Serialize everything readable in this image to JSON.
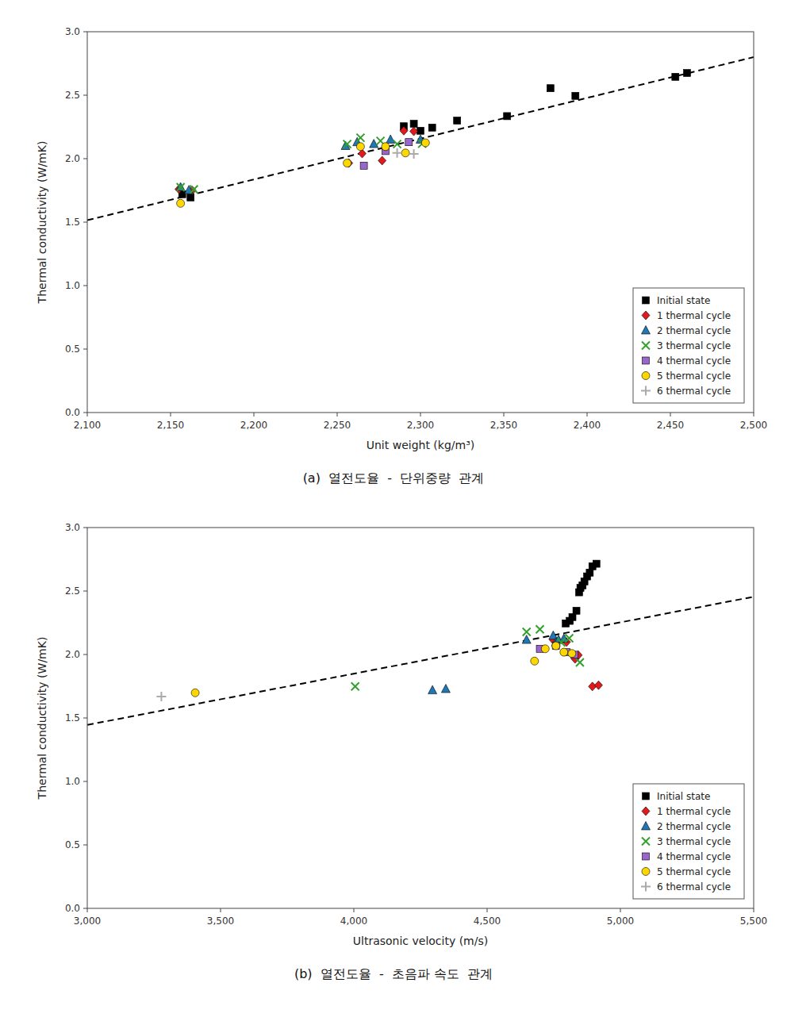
{
  "chart_data": [
    {
      "type": "scatter",
      "title": "(a)  열전도율  -  단위중량  관계",
      "xlabel": "Unit weight (kg/m³)",
      "ylabel": "Thermal conductivity (W/mK)",
      "xlim": [
        2100,
        2500
      ],
      "ylim": [
        0.0,
        3.0
      ],
      "xticks": [
        {
          "value": 2100,
          "label": "2,100"
        },
        {
          "value": 2150,
          "label": "2,150"
        },
        {
          "value": 2200,
          "label": "2,200"
        },
        {
          "value": 2250,
          "label": "2,250"
        },
        {
          "value": 2300,
          "label": "2,300"
        },
        {
          "value": 2350,
          "label": "2,350"
        },
        {
          "value": 2400,
          "label": "2,400"
        },
        {
          "value": 2450,
          "label": "2,450"
        },
        {
          "value": 2500,
          "label": "2,500"
        }
      ],
      "yticks": [
        {
          "value": 0.0,
          "label": "0.0"
        },
        0.5,
        {
          "value": 1.0,
          "label": "1.0"
        },
        1.5,
        {
          "value": 2.0,
          "label": "2.0"
        },
        2.5,
        {
          "value": 3.0,
          "label": "3.0"
        }
      ],
      "grid": false,
      "legend": "lower right",
      "trendline": {
        "x": [
          2100,
          2500
        ],
        "values": [
          1.515,
          2.8
        ],
        "color": "#000000",
        "line_style": "dashed"
      },
      "series": [
        {
          "name": "Initial state",
          "color": "#000000",
          "marker": "square",
          "x": [
            2157,
            2162,
            2290,
            2296,
            2300,
            2307,
            2322,
            2352,
            2378,
            2393,
            2453,
            2460
          ],
          "values": [
            1.72,
            1.695,
            2.255,
            2.275,
            2.22,
            2.245,
            2.3,
            2.335,
            2.555,
            2.495,
            2.645,
            2.675
          ]
        },
        {
          "name": "1 thermal cycle",
          "color": "#e31a1c",
          "marker": "diamond",
          "x": [
            2155,
            2163,
            2257,
            2265,
            2277,
            2290,
            2296
          ],
          "values": [
            1.76,
            1.75,
            1.965,
            2.04,
            1.985,
            2.22,
            2.215
          ]
        },
        {
          "name": "2 thermal cycle",
          "color": "#1f78b4",
          "marker": "triangle",
          "x": [
            2156,
            2161,
            2255,
            2262,
            2272,
            2282,
            2300
          ],
          "values": [
            1.775,
            1.752,
            2.1,
            2.13,
            2.115,
            2.15,
            2.15
          ]
        },
        {
          "name": "3 thermal cycle",
          "color": "#33a02c",
          "marker": "x",
          "x": [
            2156,
            2164,
            2256,
            2264,
            2276,
            2286,
            2301
          ],
          "values": [
            1.775,
            1.758,
            2.115,
            2.165,
            2.14,
            2.115,
            2.118
          ]
        },
        {
          "name": "4 thermal cycle",
          "color": "#9966cc",
          "marker": "square",
          "x": [
            2266,
            2279,
            2293
          ],
          "values": [
            1.945,
            2.06,
            2.13
          ]
        },
        {
          "name": "5 thermal cycle",
          "color": "#ffd700",
          "marker": "circle",
          "x": [
            2156,
            2256,
            2264,
            2279,
            2291,
            2303
          ],
          "values": [
            1.648,
            1.965,
            2.095,
            2.095,
            2.045,
            2.125
          ]
        },
        {
          "name": "6 thermal cycle",
          "color": "#aaaaaa",
          "marker": "plus",
          "x": [
            2286,
            2296
          ],
          "values": [
            2.045,
            2.038
          ]
        }
      ]
    },
    {
      "type": "scatter",
      "title": "(b)  열전도율  -  초음파 속도  관계",
      "xlabel": "Ultrasonic velocity (m/s)",
      "ylabel": "Thermal conductivity (W/mK)",
      "xlim": [
        3000,
        5500
      ],
      "ylim": [
        0.0,
        3.0
      ],
      "xticks": [
        {
          "value": 3000,
          "label": "3,000"
        },
        {
          "value": 3500,
          "label": "3,500"
        },
        {
          "value": 4000,
          "label": "4,000"
        },
        {
          "value": 4500,
          "label": "4,500"
        },
        {
          "value": 5000,
          "label": "5,000"
        },
        {
          "value": 5500,
          "label": "5,500"
        }
      ],
      "yticks": [
        {
          "value": 0.0,
          "label": "0.0"
        },
        0.5,
        {
          "value": 1.0,
          "label": "1.0"
        },
        1.5,
        {
          "value": 2.0,
          "label": "2.0"
        },
        2.5,
        {
          "value": 3.0,
          "label": "3.0"
        }
      ],
      "grid": false,
      "legend": "lower right",
      "trendline": {
        "x": [
          3000,
          5500
        ],
        "values": [
          1.445,
          2.455
        ],
        "color": "#000000",
        "line_style": "dashed"
      },
      "series": [
        {
          "name": "Initial state",
          "color": "#000000",
          "marker": "square",
          "x": [
            4795,
            4810,
            4820,
            4835,
            4845,
            4850,
            4858,
            4865,
            4875,
            4885,
            4895,
            4910
          ],
          "values": [
            2.245,
            2.265,
            2.295,
            2.345,
            2.49,
            2.525,
            2.545,
            2.575,
            2.615,
            2.645,
            2.695,
            2.715
          ]
        },
        {
          "name": "1 thermal cycle",
          "color": "#e31a1c",
          "marker": "diamond",
          "x": [
            4748,
            4798,
            4830,
            4842,
            4895,
            4918
          ],
          "values": [
            2.115,
            2.098,
            1.965,
            1.995,
            1.748,
            1.758
          ]
        },
        {
          "name": "2 thermal cycle",
          "color": "#1f78b4",
          "marker": "triangle",
          "x": [
            4295,
            4345,
            4648,
            4748,
            4758,
            4768,
            4788
          ],
          "values": [
            1.718,
            1.728,
            2.115,
            2.148,
            2.095,
            2.115,
            2.125
          ]
        },
        {
          "name": "3 thermal cycle",
          "color": "#33a02c",
          "marker": "x",
          "x": [
            4005,
            4648,
            4698,
            4778,
            4808,
            4848
          ],
          "values": [
            1.748,
            2.178,
            2.198,
            2.095,
            2.128,
            1.938
          ]
        },
        {
          "name": "4 thermal cycle",
          "color": "#9966cc",
          "marker": "square",
          "x": [
            4698,
            4758,
            4798,
            4828
          ],
          "values": [
            2.045,
            2.068,
            2.018,
            1.998
          ]
        },
        {
          "name": "5 thermal cycle",
          "color": "#ffd700",
          "marker": "circle",
          "x": [
            3405,
            4678,
            4718,
            4758,
            4788,
            4818
          ],
          "values": [
            1.698,
            1.948,
            2.045,
            2.068,
            2.018,
            2.008
          ]
        },
        {
          "name": "6 thermal cycle",
          "color": "#aaaaaa",
          "marker": "plus",
          "x": [
            3278
          ],
          "values": [
            1.668
          ]
        }
      ]
    }
  ]
}
